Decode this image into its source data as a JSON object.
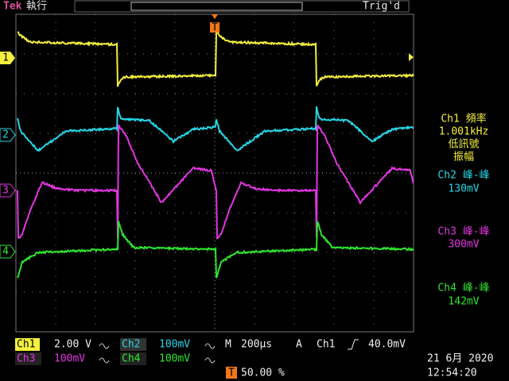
{
  "header": {
    "brand": "Tek",
    "status": "執行",
    "trigger_marker": "T",
    "trigger_status": "Trig'd"
  },
  "channel_markers": [
    "1",
    "2",
    "3",
    "4"
  ],
  "measurements": [
    {
      "label": "Ch1 頻率",
      "value": "1.001kHz",
      "notes": [
        "低訊號",
        "振幅"
      ]
    },
    {
      "label": "Ch2 峰-峰",
      "value": "130mV"
    },
    {
      "label": "Ch3 峰-峰",
      "value": "300mV"
    },
    {
      "label": "Ch4 峰-峰",
      "value": "142mV"
    }
  ],
  "footer": {
    "channels": [
      {
        "label": "Ch1",
        "scale": "2.00 V"
      },
      {
        "label": "Ch2",
        "scale": "100mV"
      },
      {
        "label": "Ch3",
        "scale": "100mV"
      },
      {
        "label": "Ch4",
        "scale": "100mV"
      }
    ],
    "timebase_label": "M",
    "timebase": "200µs",
    "acquisition": "A",
    "trigger_source": "Ch1",
    "trigger_level": "40.0mV",
    "trigger_position_marker": "T",
    "trigger_position": "50.00 %",
    "date": "21 6月 2020",
    "time": "12:54:20"
  }
}
